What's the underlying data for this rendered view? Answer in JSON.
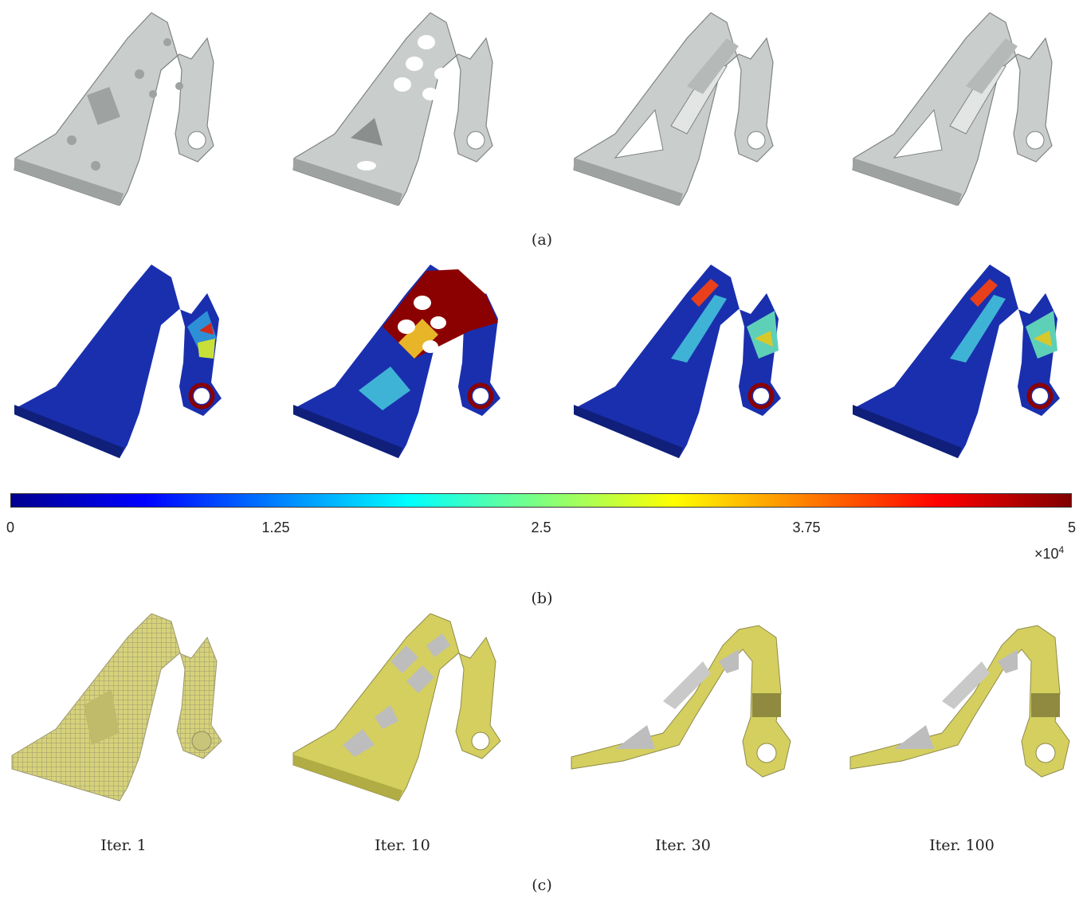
{
  "captions": {
    "a": "(a)",
    "b": "(b)",
    "c": "(c)"
  },
  "iterations": [
    "Iter. 1",
    "Iter. 10",
    "Iter. 30",
    "Iter. 100"
  ],
  "colorbar": {
    "ticks": [
      "0",
      "1.25",
      "2.5",
      "3.75",
      "5"
    ],
    "min": 0,
    "max": 5,
    "multiplier_base": "×10",
    "multiplier_exp": "4",
    "colormap": "jet"
  },
  "colors": {
    "solid_gray": "#c9cdcb",
    "solid_gray_dark": "#9ea3a1",
    "voxel_yellow": "#d6d27a",
    "voxel_yellow_dark": "#a9a456",
    "stress_low": "#1a1fa8",
    "stress_high": "#8b0000"
  },
  "rows": {
    "a": {
      "kind": "solid-render"
    },
    "b": {
      "kind": "stress-field"
    },
    "c": {
      "kind": "voxel-render"
    }
  }
}
